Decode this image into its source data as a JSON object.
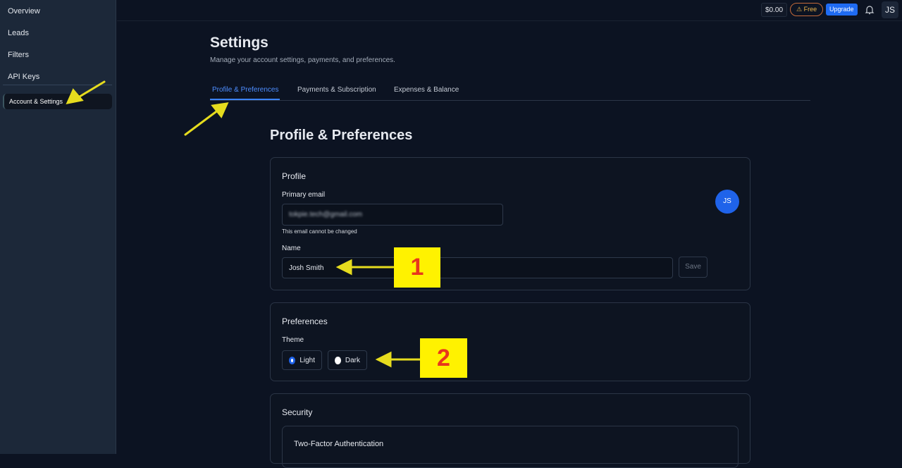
{
  "sidebar": {
    "items": [
      {
        "label": "Overview"
      },
      {
        "label": "Leads"
      },
      {
        "label": "Filters"
      },
      {
        "label": "API Keys"
      },
      {
        "label": "Account & Settings",
        "active": true
      }
    ]
  },
  "topbar": {
    "balance": "$0.00",
    "plan_badge": "⚠ Free",
    "upgrade": "Upgrade",
    "avatar": "JS",
    "icons": [
      "bell-icon"
    ]
  },
  "header": {
    "title": "Settings",
    "subtitle": "Manage your account settings, payments, and preferences."
  },
  "tabs": [
    {
      "label": "Profile & Preferences",
      "active": true
    },
    {
      "label": "Payments & Subscription"
    },
    {
      "label": "Expenses & Balance"
    }
  ],
  "section_title": "Profile & Preferences",
  "profile": {
    "title": "Profile",
    "email_label": "Primary email",
    "email_value": "tokpie.tech@gmail.com",
    "email_hint": "This email cannot be changed",
    "name_label": "Name",
    "name_value": "Josh Smith",
    "save": "Save",
    "avatar": "JS"
  },
  "preferences": {
    "title": "Preferences",
    "theme_label": "Theme",
    "options": [
      {
        "label": "Light",
        "selected": true
      },
      {
        "label": "Dark",
        "selected": false
      }
    ]
  },
  "security": {
    "title": "Security",
    "twofa_title": "Two-Factor Authentication"
  },
  "annotations": {
    "badge1": "1",
    "badge2": "2",
    "arrow_color": "#e6dc1e",
    "badge_bg": "#fff200",
    "badge_text": "#e8361c"
  },
  "colors": {
    "accent": "#3b82f6",
    "background": "#0c1322",
    "sidebar": "#1c2839"
  }
}
